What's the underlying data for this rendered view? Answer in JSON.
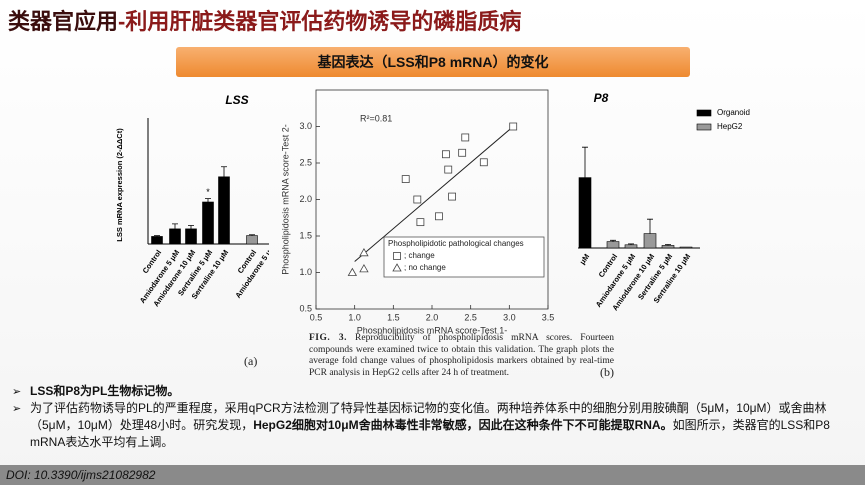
{
  "header": {
    "title_lead": "类器官应用",
    "title_rest": "-利用肝脏类器官评估药物诱导的磷脂质病"
  },
  "banner": "基因表达（LSS和P8 mRNA）的变化",
  "chart_data": [
    {
      "type": "bar",
      "title": "LSS",
      "ylabel": "LSS mRNA expression (2-ΔΔCt)",
      "categories": [
        "Control",
        "Amiodarone 5 μM",
        "Amiodarone 10 μM",
        "Sertraline 5 μM",
        "Sertraline 10 μM",
        "Control",
        "Amiodarone 5 μ"
      ],
      "series": [
        {
          "name": "Organoid",
          "color": "#000000",
          "values": [
            0.9,
            1.8,
            1.8,
            5.0,
            8.0,
            null,
            null
          ],
          "errors": [
            0.1,
            0.6,
            0.4,
            0.4,
            1.2,
            null,
            null
          ]
        },
        {
          "name": "HepG2",
          "color": "#999999",
          "values": [
            null,
            null,
            null,
            null,
            null,
            1.0,
            null
          ],
          "errors": [
            null,
            null,
            null,
            null,
            null,
            0.1,
            null
          ]
        }
      ],
      "ylim": [
        0,
        15
      ],
      "legend": false,
      "annotations": [
        {
          "text": "*",
          "at": "Sertraline 5 μM"
        }
      ]
    },
    {
      "type": "scatter",
      "annotation": "R²=0.81",
      "xlabel": "Phospholipidosis mRNA score-Test 1-",
      "ylabel": "Phospholipidosis mRNA score-Test 2-",
      "legend_title": "Phospholipidotic pathological changes",
      "series": [
        {
          "name": "; change",
          "marker": "square",
          "x": [
            3.05,
            2.43,
            2.39,
            2.18,
            2.21,
            2.67,
            1.66,
            1.81,
            2.26,
            1.85,
            2.09
          ],
          "y": [
            3.0,
            2.85,
            2.64,
            2.62,
            2.41,
            2.51,
            2.28,
            2.0,
            2.04,
            1.69,
            1.77
          ]
        },
        {
          "name": "; no change",
          "marker": "triangle",
          "x": [
            0.97,
            1.12,
            1.12
          ],
          "y": [
            1.0,
            1.27,
            1.05
          ]
        }
      ],
      "fit": {
        "x": [
          1.0,
          3.05
        ],
        "y": [
          1.15,
          3.0
        ]
      },
      "xlim": [
        0.5,
        3.5
      ],
      "xticks": [
        0.5,
        {
          "value": 1,
          "label": "1.0"
        },
        1.5,
        {
          "value": 2,
          "label": "2.0"
        },
        2.5,
        {
          "value": 3,
          "label": "3.0"
        },
        3.5
      ],
      "ylim": [
        0.5,
        3.5
      ],
      "yticks": [
        0.5,
        {
          "value": 1,
          "label": "1.0"
        },
        1.5,
        {
          "value": 2,
          "label": "2.0"
        },
        2.5,
        {
          "value": 3,
          "label": "3.0"
        }
      ]
    },
    {
      "type": "bar",
      "title": "P8",
      "categories": [
        "μM",
        "Control",
        "Amiodarone 5 μM",
        "Amiodarone 10 μM",
        "Sertraline 5 μM",
        "Sertraline 10 μM"
      ],
      "series": [
        {
          "name": "Organoid",
          "color": "#000000",
          "values": [
            2.2,
            null,
            null,
            null,
            null,
            null
          ],
          "errors": [
            0.95,
            null,
            null,
            null,
            null,
            null
          ]
        },
        {
          "name": "HepG2",
          "color": "#999999",
          "values": [
            null,
            0.2,
            0.1,
            0.45,
            0.08,
            0.03
          ],
          "errors": [
            null,
            0.04,
            0.03,
            0.45,
            0.03,
            null
          ]
        }
      ],
      "ylim": [
        0,
        4
      ],
      "legend": true
    }
  ],
  "caption": {
    "label": "FIG. 3.",
    "text": "Reproducibility of phospholipidosis mRNA scores. Fourteen compounds were examined twice to obtain this validation. The graph plots the average fold change values of phospholipidosis markers obtained by real-time PCR analysis in HepG2 cells after 24 h of treatment."
  },
  "panel_labels": [
    "(a)",
    "(b)"
  ],
  "bullets": [
    {
      "parts": [
        "LSS和P8为PL生物标记物。"
      ]
    },
    {
      "parts": [
        "为了评估药物诱导的PL的严重程度，采用qPCR方法检测了特异性基因标记物的变化值。两种培养体系中的细胞分别用胺碘酮（5μM，10μM）或舍曲林（5μM，10μM）处理48小时。研究发现，",
        "HepG2细胞对10μM舍曲林毒性非常敏感，因此在这种条件下不可能提取RNA。",
        "如图所示，类器官的LSS和P8 mRNA表达水平均有上调。"
      ]
    }
  ],
  "footer": "DOI: 10.3390/ijms21082982"
}
